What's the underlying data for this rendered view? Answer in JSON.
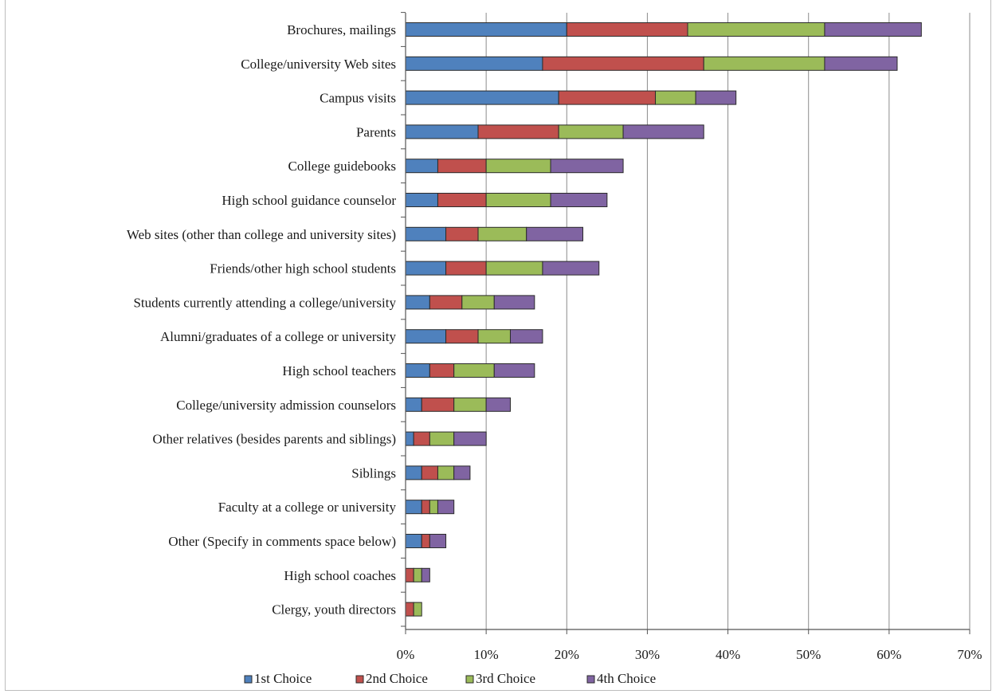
{
  "chart_data": {
    "type": "bar",
    "orientation": "horizontal",
    "stacked": true,
    "categories": [
      "Brochures, mailings",
      "College/university Web sites",
      "Campus visits",
      "Parents",
      "College guidebooks",
      "High school guidance counselor",
      "Web sites (other than college and university sites)",
      "Friends/other high school students",
      "Students currently attending a college/university",
      "Alumni/graduates of a college or university",
      "High school teachers",
      "College/university admission counselors",
      "Other relatives (besides parents and siblings)",
      "Siblings",
      "Faculty at a college or university",
      "Other (Specify in comments space below)",
      "High school coaches",
      "Clergy, youth directors"
    ],
    "series": [
      {
        "name": "1st Choice",
        "color": "#4f81bd",
        "values": [
          20,
          17,
          19,
          9,
          4,
          4,
          5,
          5,
          3,
          5,
          3,
          2,
          1,
          2,
          2,
          2,
          0,
          0
        ]
      },
      {
        "name": "2nd Choice",
        "color": "#c0504d",
        "values": [
          15,
          20,
          12,
          10,
          6,
          6,
          4,
          5,
          4,
          4,
          3,
          4,
          2,
          2,
          1,
          1,
          1,
          1
        ]
      },
      {
        "name": "3rd Choice",
        "color": "#9bbb59",
        "values": [
          17,
          15,
          5,
          8,
          8,
          8,
          6,
          7,
          4,
          4,
          5,
          4,
          3,
          2,
          1,
          0,
          1,
          1
        ]
      },
      {
        "name": "4th Choice",
        "color": "#8064a2",
        "values": [
          12,
          9,
          5,
          10,
          9,
          7,
          7,
          7,
          5,
          4,
          5,
          3,
          4,
          2,
          2,
          2,
          1,
          0
        ]
      }
    ],
    "xlim": [
      0,
      70
    ],
    "xticks": [
      "0%",
      "10%",
      "20%",
      "30%",
      "40%",
      "50%",
      "60%",
      "70%"
    ],
    "grid": "vertical",
    "legend": "bottom"
  }
}
